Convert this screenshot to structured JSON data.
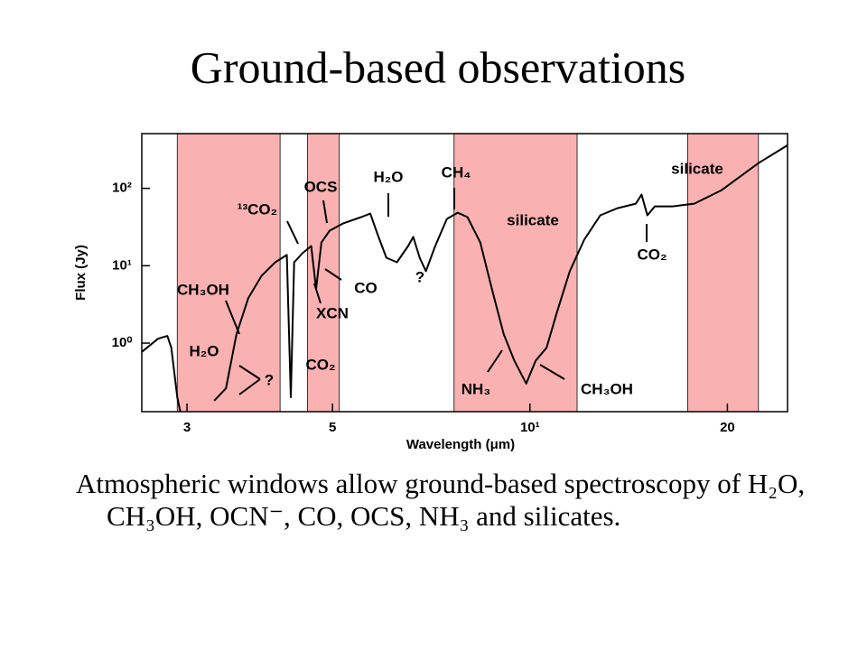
{
  "slide": {
    "title": "Ground-based observations",
    "body": "Atmospheric windows allow ground-based spectroscopy of H₂O, CH₃OH, OCN⁻, CO, OCS, NH₃ and silicates."
  },
  "chart_data": {
    "type": "line",
    "xlabel": "Wavelength (μm)",
    "ylabel": "Flux (Jy)",
    "xscale": "log",
    "yscale": "log",
    "xlim": [
      2.56,
      24.7
    ],
    "ylim": [
      0.13,
      510
    ],
    "xticks": [
      3,
      5,
      {
        "value": 10,
        "label": "10¹"
      },
      20
    ],
    "yticks": [
      {
        "value": 1,
        "label": "10⁰"
      },
      {
        "value": 10,
        "label": "10¹"
      },
      {
        "value": 100,
        "label": "10²"
      }
    ],
    "bands": [
      [
        2.9,
        4.16
      ],
      [
        4.58,
        5.12
      ],
      [
        7.66,
        11.8
      ],
      [
        17.4,
        22.3
      ]
    ],
    "band_color": "#f9b1b1",
    "color": "#000000",
    "x": [
      2.56,
      2.71,
      2.8,
      2.84,
      2.9,
      2.93,
      3.1,
      3.3,
      3.44,
      3.57,
      3.72,
      3.9,
      4.09,
      4.26,
      4.32,
      4.37,
      4.5,
      4.64,
      4.72,
      4.81,
      4.95,
      5.19,
      5.53,
      5.71,
      5.85,
      6.04,
      6.27,
      6.52,
      6.64,
      6.79,
      6.94,
      7.17,
      7.47,
      7.76,
      8.03,
      8.4,
      8.75,
      9.12,
      9.47,
      9.87,
      10.2,
      10.6,
      11.0,
      11.5,
      12.1,
      12.8,
      13.6,
      14.5,
      14.8,
      15.1,
      15.5,
      16.5,
      17.8,
      19.6,
      22.3,
      24.7
    ],
    "values": [
      0.77,
      1.14,
      1.24,
      0.87,
      0.2,
      0.13,
      null,
      0.18,
      0.26,
      1.31,
      3.81,
      7.45,
      11.1,
      13.8,
      0.2,
      11.1,
      14.5,
      18.0,
      4.99,
      20.0,
      28.4,
      35.2,
      42.5,
      47.2,
      26.2,
      12.7,
      11.1,
      18.0,
      23.6,
      12.7,
      8.51,
      18.0,
      40.3,
      48.5,
      42.5,
      20.0,
      4.99,
      1.31,
      0.59,
      0.3,
      0.59,
      0.87,
      2.55,
      8.51,
      21.7,
      44.8,
      55.5,
      63.4,
      82.9,
      44.8,
      58.5,
      58.5,
      63.4,
      94.8,
      212,
      361
    ],
    "annotations": [
      "¹³CO₂",
      "OCS",
      "H₂O",
      "CH₄",
      "silicate",
      "silicate",
      "CO₂",
      "CH₃OH",
      "CO",
      "XCN",
      "?",
      "?",
      "H₂O",
      "CO₂",
      "NH₃",
      "CH₃OH"
    ]
  }
}
